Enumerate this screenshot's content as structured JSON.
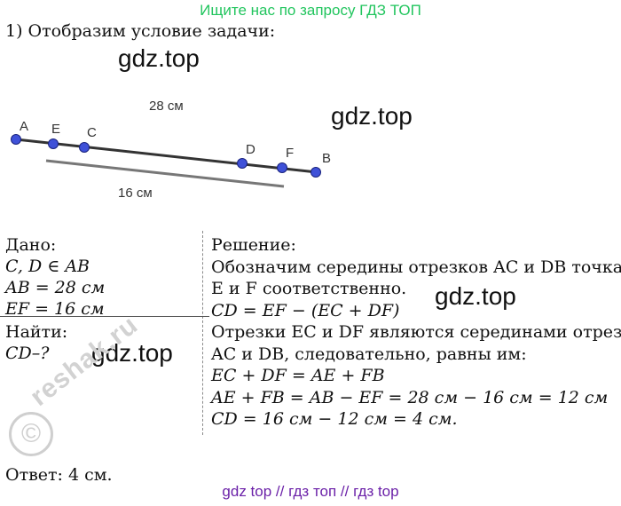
{
  "banner": "Ищите нас по запросу ГДЗ ТОП",
  "heading": "1) Отобразим условие задачи:",
  "watermarks": [
    "gdz.top",
    "gdz.top",
    "gdz.top",
    "gdz.top"
  ],
  "diagram": {
    "points": [
      "A",
      "E",
      "C",
      "D",
      "F",
      "B"
    ],
    "top_label": "28 см",
    "bottom_label": "16 см",
    "point_color": "#3f51d8"
  },
  "given": {
    "title": "Дано:",
    "lines": [
      "C, D ∈ AB",
      "AB = 28 см",
      "EF = 16 см"
    ]
  },
  "find": {
    "title": "Найти:",
    "line": "CD–?"
  },
  "solution": {
    "title": "Решение:",
    "lines": [
      "Обозначим середины отрезков AC и DB точками",
      " E и  F соответственно.",
      "CD = EF − (EC + DF)",
      "Отрезки EC и DF являются серединами отрезков",
      "AC и DB, следовательно, равны им:",
      "EC + DF = AE + FB",
      "AE + FB = AB − EF = 28 см − 16 см = 12 см",
      "CD = 16 см − 12 см = 4 см."
    ]
  },
  "answer": "Ответ: 4 см.",
  "stamp": {
    "text": "reshak.ru",
    "symbol": "©"
  },
  "footer": "gdz top  //  гдз топ  //  гдз top"
}
